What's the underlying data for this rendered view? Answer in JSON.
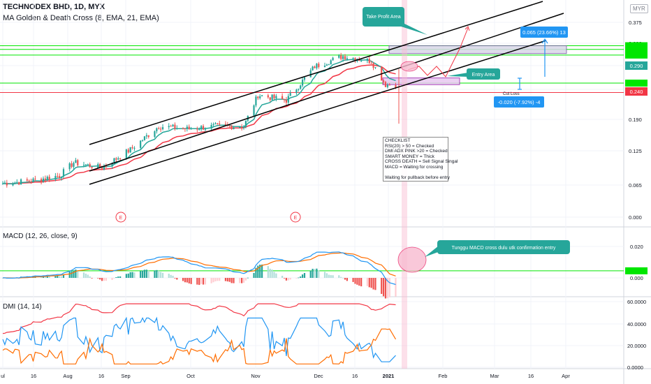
{
  "header": {
    "title": "TECHNODEX BHD, 1D, MYX",
    "indicator": "MA Golden & Death Cross (8, EMA, 21, EMA)",
    "currency": "MYR"
  },
  "price_axis": {
    "ticks": [
      "0.375",
      "0.330",
      "0.290",
      "0.245",
      "0.190",
      "0.125",
      "0.065",
      "0.000"
    ],
    "badges": [
      {
        "text": "0.290",
        "color": "#26a69a"
      },
      {
        "text": "0.240",
        "color": "#f23645"
      }
    ],
    "green_level_badges": [
      "",
      "",
      "",
      ""
    ]
  },
  "macd": {
    "label": "MACD (12, 26, close, 9)",
    "ticks": [
      "0.020",
      "0.000"
    ]
  },
  "dmi": {
    "label": "DMI (14, 14)",
    "ticks": [
      "60.0000",
      "40.0000",
      "20.0000",
      "0.0000"
    ]
  },
  "time_axis": {
    "labels": [
      "ul",
      "16",
      "Aug",
      "16",
      "Sep",
      "Oct",
      "Nov",
      "Dec",
      "16",
      "2021",
      "Feb",
      "Mar",
      "16",
      "Apr"
    ]
  },
  "annotations": {
    "take_profit": "Take Profit Area",
    "entry": "Entry Area",
    "cut_loss": "Cut Loss",
    "target": "0.065 (23.66%) 13",
    "risk": "-0.020 (-7.92%) -4",
    "macd_note": "Tunggu MACD cross dulu utk confirmation entry",
    "event_marker": "E"
  },
  "checklist": {
    "lines": [
      "CHECKLIST",
      "RSI(20) > 50 = Checked",
      "DMI ADX PINK >20 = Checked",
      "SMART MONEY = Thick",
      "CROSS DEATH = Sell Signal Singal",
      "MACD = Waiting for crossing",
      "",
      "Waiting for pullback before entry"
    ]
  },
  "colors": {
    "up": "#26a69a",
    "down": "#ef5350",
    "ema_fast": "#26a69a",
    "ema_slow": "#f23645",
    "macd_line": "#2196f3",
    "signal_line": "#ff6d00",
    "green_level": "#00e600",
    "red_level": "#f23645",
    "di_plus": "#2196f3",
    "di_minus": "#ff6d00",
    "adx": "#f23645"
  },
  "chart_data": {
    "type": "candlestick",
    "title": "TECHNODEX BHD, 1D, MYX",
    "x_range": [
      "2020-07-01",
      "2021-04-05"
    ],
    "ylim": [
      -0.015,
      0.4
    ],
    "candles_weekly_approx": [
      {
        "date": "2020-07-01",
        "o": 0.06,
        "h": 0.07,
        "l": 0.055,
        "c": 0.065
      },
      {
        "date": "2020-07-15",
        "o": 0.065,
        "h": 0.075,
        "l": 0.06,
        "c": 0.07
      },
      {
        "date": "2020-07-29",
        "o": 0.07,
        "h": 0.085,
        "l": 0.065,
        "c": 0.08
      },
      {
        "date": "2020-08-05",
        "o": 0.08,
        "h": 0.11,
        "l": 0.075,
        "c": 0.105
      },
      {
        "date": "2020-08-19",
        "o": 0.105,
        "h": 0.115,
        "l": 0.085,
        "c": 0.095
      },
      {
        "date": "2020-09-02",
        "o": 0.095,
        "h": 0.14,
        "l": 0.09,
        "c": 0.13
      },
      {
        "date": "2020-09-16",
        "o": 0.13,
        "h": 0.195,
        "l": 0.125,
        "c": 0.175
      },
      {
        "date": "2020-09-30",
        "o": 0.175,
        "h": 0.19,
        "l": 0.16,
        "c": 0.17
      },
      {
        "date": "2020-10-14",
        "o": 0.17,
        "h": 0.185,
        "l": 0.16,
        "c": 0.175
      },
      {
        "date": "2020-10-28",
        "o": 0.175,
        "h": 0.18,
        "l": 0.165,
        "c": 0.175
      },
      {
        "date": "2020-11-04",
        "o": 0.175,
        "h": 0.245,
        "l": 0.17,
        "c": 0.235
      },
      {
        "date": "2020-11-18",
        "o": 0.235,
        "h": 0.25,
        "l": 0.215,
        "c": 0.225
      },
      {
        "date": "2020-12-02",
        "o": 0.225,
        "h": 0.3,
        "l": 0.22,
        "c": 0.29
      },
      {
        "date": "2020-12-16",
        "o": 0.29,
        "h": 0.33,
        "l": 0.28,
        "c": 0.31
      },
      {
        "date": "2020-12-30",
        "o": 0.31,
        "h": 0.335,
        "l": 0.29,
        "c": 0.3
      },
      {
        "date": "2021-01-06",
        "o": 0.3,
        "h": 0.31,
        "l": 0.235,
        "c": 0.255
      }
    ],
    "levels": {
      "green": [
        0.33,
        0.323,
        0.312,
        0.258
      ],
      "red": 0.24,
      "take_profit_zone": [
        0.315,
        0.33
      ],
      "entry_zone": [
        0.255,
        0.268
      ]
    },
    "macd_range": [
      -0.012,
      0.028
    ],
    "dmi_range": [
      0,
      60
    ]
  }
}
